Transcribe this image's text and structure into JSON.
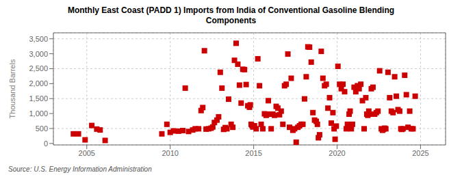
{
  "chart_data": {
    "type": "scatter",
    "title": "Monthly East Coast (PADD 1) Imports from India of Conventional Gasoline Blending\nComponents",
    "ylabel": "Thousand Barrels",
    "annotations": [
      "Source: U.S. Energy Information Administration"
    ],
    "color": "#cc0000",
    "marker": "square",
    "grid": true,
    "xlim": [
      2003.0,
      2026.5
    ],
    "ylim": [
      -50,
      3700
    ],
    "xticks": [
      2005,
      2010,
      2015,
      2020,
      2025
    ],
    "yticks": [
      0,
      500,
      {
        "value": 1000,
        "label": "1,000"
      },
      {
        "value": 1500,
        "label": "1,500"
      },
      {
        "value": 2000,
        "label": "2,000"
      },
      {
        "value": 2500,
        "label": "2,500"
      },
      {
        "value": 3000,
        "label": "3,000"
      },
      {
        "value": 3500,
        "label": "3,500"
      }
    ],
    "x": [
      2004.2,
      2004.5,
      2004.9,
      2005.3,
      2005.6,
      2005.8,
      2006.1,
      2009.5,
      2009.8,
      2010.0,
      2010.2,
      2010.5,
      2010.75,
      2010.9,
      2011.1,
      2011.35,
      2011.5,
      2011.7,
      2011.85,
      2011.95,
      2012.05,
      2012.15,
      2012.3,
      2012.45,
      2012.55,
      2012.65,
      2012.8,
      2012.9,
      2013.0,
      2013.1,
      2013.2,
      2013.3,
      2013.4,
      2013.5,
      2013.65,
      2013.75,
      2013.85,
      2013.95,
      2014.05,
      2014.15,
      2014.25,
      2014.35,
      2014.45,
      2014.55,
      2014.65,
      2014.75,
      2014.8,
      2014.85,
      2014.9,
      2014.95,
      2015.05,
      2015.15,
      2015.25,
      2015.35,
      2015.45,
      2015.55,
      2015.65,
      2015.75,
      2015.8,
      2015.88,
      2015.95,
      2016.05,
      2016.15,
      2016.25,
      2016.35,
      2016.45,
      2016.55,
      2016.65,
      2016.75,
      2016.85,
      2016.95,
      2017.05,
      2017.15,
      2017.25,
      2017.35,
      2017.45,
      2017.55,
      2017.65,
      2017.75,
      2017.85,
      2017.95,
      2018.05,
      2018.15,
      2018.25,
      2018.35,
      2018.45,
      2018.55,
      2018.65,
      2018.75,
      2018.82,
      2018.88,
      2018.95,
      2019.05,
      2019.15,
      2019.25,
      2019.35,
      2019.45,
      2019.55,
      2019.65,
      2019.75,
      2019.82,
      2019.88,
      2019.95,
      2020.05,
      2020.15,
      2020.25,
      2020.35,
      2020.45,
      2020.55,
      2020.62,
      2020.68,
      2020.72,
      2020.78,
      2020.85,
      2020.92,
      2021.02,
      2021.12,
      2021.22,
      2021.32,
      2021.42,
      2021.52,
      2021.62,
      2021.72,
      2021.78,
      2021.84,
      2021.9,
      2021.96,
      2022.05,
      2022.15,
      2022.25,
      2022.35,
      2022.45,
      2022.55,
      2022.65,
      2022.72,
      2022.78,
      2022.85,
      2022.92,
      2023.05,
      2023.15,
      2023.25,
      2023.35,
      2023.45,
      2023.55,
      2023.65,
      2023.75,
      2023.82,
      2023.88,
      2023.95,
      2024.05,
      2024.15,
      2024.25,
      2024.35,
      2024.45,
      2024.55,
      2024.68
    ],
    "values": [
      320,
      320,
      120,
      600,
      480,
      450,
      100,
      320,
      640,
      370,
      420,
      410,
      430,
      1850,
      400,
      450,
      490,
      490,
      1100,
      1200,
      3100,
      480,
      490,
      510,
      550,
      700,
      780,
      890,
      2380,
      1850,
      470,
      530,
      490,
      1480,
      640,
      540,
      2780,
      3350,
      2650,
      1950,
      1350,
      2480,
      2470,
      1970,
      1260,
      1210,
      1290,
      640,
      600,
      550,
      590,
      490,
      2830,
      1930,
      640,
      490,
      990,
      940,
      970,
      1430,
      980,
      490,
      980,
      940,
      1240,
      1180,
      960,
      1080,
      640,
      1930,
      1980,
      2990,
      540,
      2180,
      440,
      490,
      40,
      540,
      590,
      640,
      640,
      1490,
      2230,
      3230,
      3220,
      2720,
      1030,
      780,
      740,
      640,
      190,
      290,
      3080,
      2180,
      1930,
      1980,
      1180,
      1530,
      680,
      1030,
      490,
      140,
      580,
      2580,
      1980,
      1830,
      1980,
      1730,
      490,
      640,
      540,
      980,
      1080,
      490,
      640,
      1880,
      1730,
      1930,
      1830,
      1980,
      1430,
      490,
      1530,
      980,
      940,
      1080,
      980,
      1830,
      1880,
      980,
      1030,
      1080,
      2430,
      490,
      440,
      470,
      510,
      490,
      2380,
      1530,
      1080,
      1030,
      2230,
      1580,
      1130,
      1080,
      490,
      470,
      490,
      2280,
      1630,
      540,
      1080,
      490,
      490,
      1580
    ]
  }
}
